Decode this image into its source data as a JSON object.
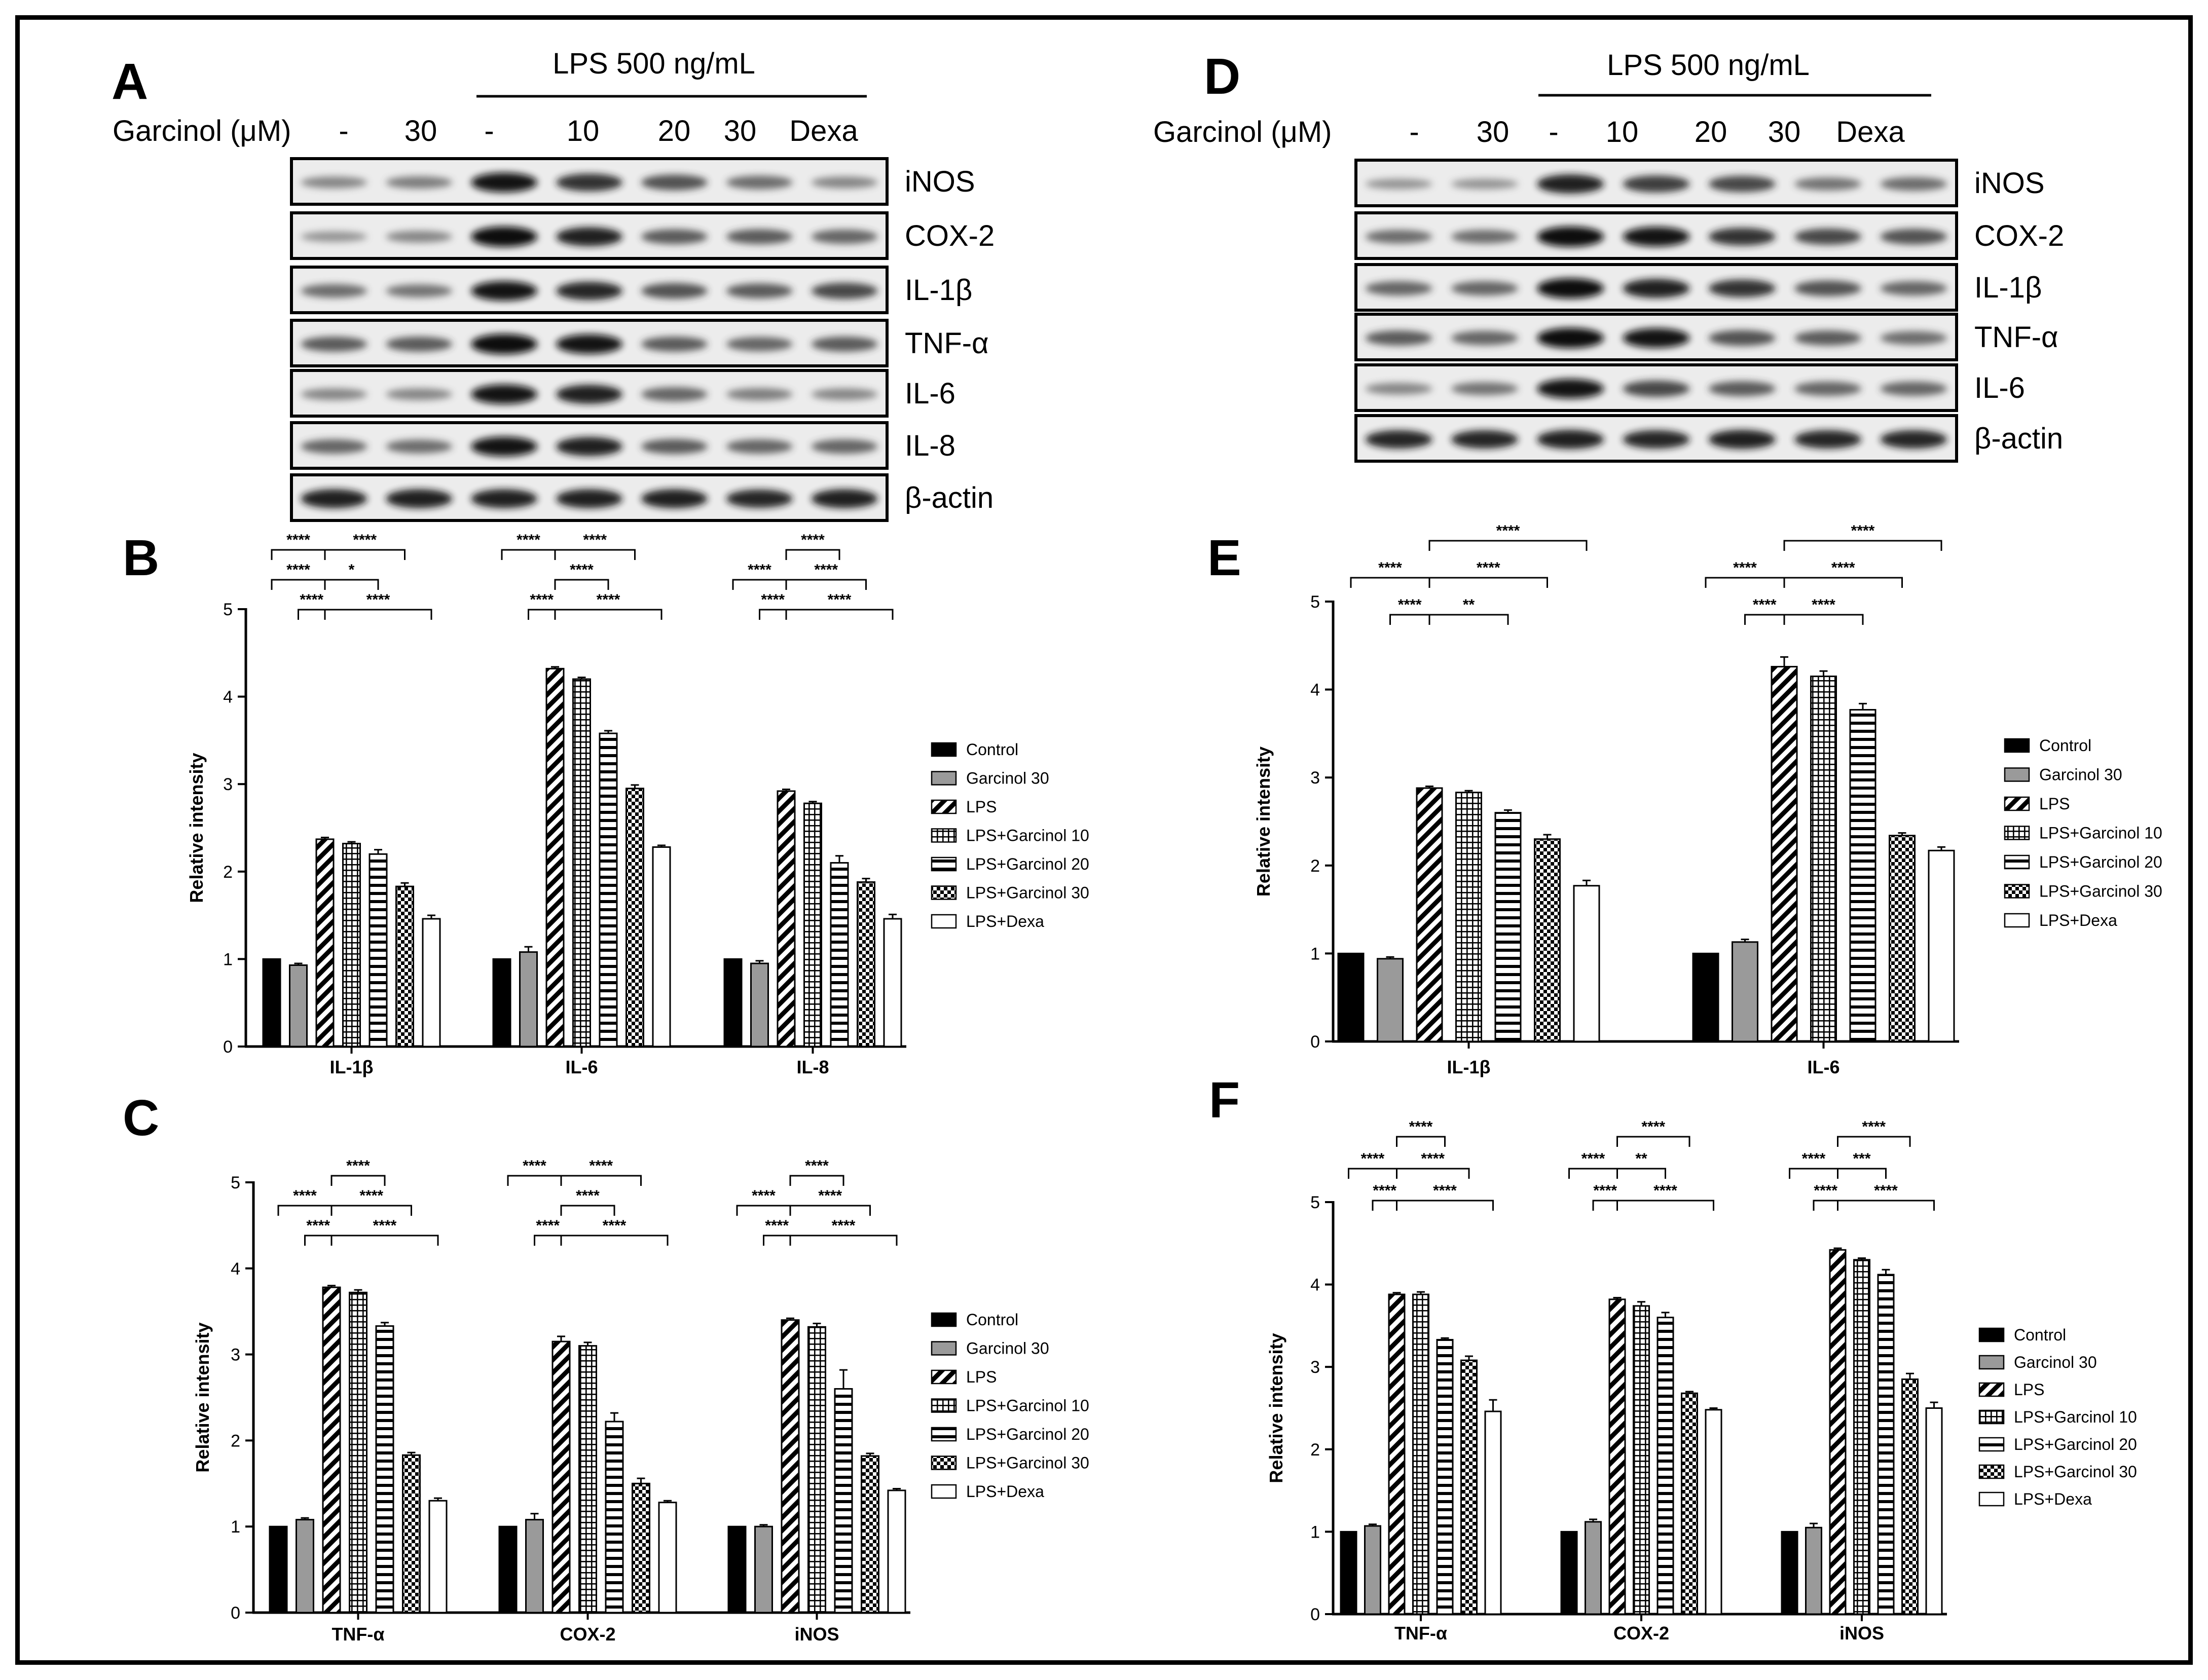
{
  "colors": {
    "ink": "#000000",
    "bar_grey": "#9a9a9a",
    "background": "#ffffff"
  },
  "legend": [
    "Control",
    "Garcinol 30",
    "LPS",
    "LPS+Garcinol 10",
    "LPS+Garcinol 20",
    "LPS+Garcinol 30",
    "LPS+Dexa"
  ],
  "blots": [
    {
      "panel": "A",
      "lps_label": "LPS 500 ng/mL",
      "garcinol_label": "Garcinol (μM)",
      "lanes": [
        "-",
        "30",
        "-",
        "10",
        "20",
        "30",
        "Dexa"
      ],
      "bands": [
        "iNOS",
        "COX-2",
        "IL-1β",
        "TNF-α",
        "IL-6",
        "IL-8",
        "β-actin"
      ]
    },
    {
      "panel": "D",
      "lps_label": "LPS 500 ng/mL",
      "garcinol_label": "Garcinol (μM)",
      "lanes": [
        "-",
        "30",
        "-",
        "10",
        "20",
        "30",
        "Dexa"
      ],
      "bands": [
        "iNOS",
        "COX-2",
        "IL-1β",
        "TNF-α",
        "IL-6",
        "β-actin"
      ]
    }
  ],
  "chart_data": [
    {
      "panel": "B",
      "type": "bar",
      "ylabel": "Relative intensity",
      "ylim": [
        0,
        5
      ],
      "yticks": [
        "0",
        "1",
        "2",
        "3",
        "4",
        "5"
      ],
      "categories": [
        "IL-1β",
        "IL-6",
        "IL-8"
      ],
      "series": [
        {
          "name": "Control",
          "values": [
            1.0,
            1.0,
            1.0
          ],
          "errors": [
            0,
            0,
            0
          ]
        },
        {
          "name": "Garcinol 30",
          "values": [
            0.93,
            1.08,
            0.95
          ],
          "errors": [
            0.02,
            0.06,
            0.03
          ]
        },
        {
          "name": "LPS",
          "values": [
            2.37,
            4.32,
            2.92
          ],
          "errors": [
            0.02,
            0.02,
            0.02
          ]
        },
        {
          "name": "LPS+Garcinol 10",
          "values": [
            2.32,
            4.2,
            2.78
          ],
          "errors": [
            0.02,
            0.02,
            0.02
          ]
        },
        {
          "name": "LPS+Garcinol 20",
          "values": [
            2.2,
            3.58,
            2.1
          ],
          "errors": [
            0.05,
            0.03,
            0.08
          ]
        },
        {
          "name": "LPS+Garcinol 30",
          "values": [
            1.83,
            2.95,
            1.88
          ],
          "errors": [
            0.04,
            0.04,
            0.04
          ]
        },
        {
          "name": "LPS+Dexa",
          "values": [
            1.46,
            2.28,
            1.46
          ],
          "errors": [
            0.04,
            0.02,
            0.05
          ]
        }
      ],
      "significance": [
        {
          "group": 0,
          "from": 0,
          "to": 2,
          "level": 0,
          "label": "****"
        },
        {
          "group": 0,
          "from": 2,
          "to": 5,
          "level": 0,
          "label": "****"
        },
        {
          "group": 0,
          "from": 0,
          "to": 2,
          "level": 1,
          "label": "****"
        },
        {
          "group": 0,
          "from": 2,
          "to": 4,
          "level": 1,
          "label": "*"
        },
        {
          "group": 0,
          "from": 1,
          "to": 2,
          "level": 2,
          "label": "****"
        },
        {
          "group": 0,
          "from": 2,
          "to": 6,
          "level": 2,
          "label": "****"
        },
        {
          "group": 1,
          "from": 0,
          "to": 2,
          "level": 0,
          "label": "****"
        },
        {
          "group": 1,
          "from": 2,
          "to": 5,
          "level": 0,
          "label": "****"
        },
        {
          "group": 1,
          "from": 2,
          "to": 4,
          "level": 1,
          "label": "****"
        },
        {
          "group": 1,
          "from": 1,
          "to": 2,
          "level": 2,
          "label": "****"
        },
        {
          "group": 1,
          "from": 2,
          "to": 6,
          "level": 2,
          "label": "****"
        },
        {
          "group": 2,
          "from": 2,
          "to": 4,
          "level": 0,
          "label": "****"
        },
        {
          "group": 2,
          "from": 0,
          "to": 2,
          "level": 1,
          "label": "****"
        },
        {
          "group": 2,
          "from": 2,
          "to": 5,
          "level": 1,
          "label": "****"
        },
        {
          "group": 2,
          "from": 1,
          "to": 2,
          "level": 2,
          "label": "****"
        },
        {
          "group": 2,
          "from": 2,
          "to": 6,
          "level": 2,
          "label": "****"
        }
      ]
    },
    {
      "panel": "C",
      "type": "bar",
      "ylabel": "Relative intensity",
      "ylim": [
        0,
        5
      ],
      "yticks": [
        "0",
        "1",
        "2",
        "3",
        "4",
        "5"
      ],
      "categories": [
        "TNF-α",
        "COX-2",
        "iNOS"
      ],
      "series": [
        {
          "name": "Control",
          "values": [
            1.0,
            1.0,
            1.0
          ],
          "errors": [
            0,
            0,
            0
          ]
        },
        {
          "name": "Garcinol 30",
          "values": [
            1.08,
            1.08,
            1.0
          ],
          "errors": [
            0.02,
            0.07,
            0.02
          ]
        },
        {
          "name": "LPS",
          "values": [
            3.78,
            3.15,
            3.4
          ],
          "errors": [
            0.02,
            0.06,
            0.02
          ]
        },
        {
          "name": "LPS+Garcinol 10",
          "values": [
            3.72,
            3.1,
            3.32
          ],
          "errors": [
            0.03,
            0.04,
            0.04
          ]
        },
        {
          "name": "LPS+Garcinol 20",
          "values": [
            3.33,
            2.22,
            2.6
          ],
          "errors": [
            0.04,
            0.1,
            0.22
          ]
        },
        {
          "name": "LPS+Garcinol 30",
          "values": [
            1.83,
            1.5,
            1.82
          ],
          "errors": [
            0.03,
            0.06,
            0.03
          ]
        },
        {
          "name": "LPS+Dexa",
          "values": [
            1.3,
            1.28,
            1.42
          ],
          "errors": [
            0.03,
            0.02,
            0.02
          ]
        }
      ],
      "significance": [
        {
          "group": 0,
          "from": 2,
          "to": 4,
          "level": 0,
          "label": "****"
        },
        {
          "group": 0,
          "from": 0,
          "to": 2,
          "level": 1,
          "label": "****"
        },
        {
          "group": 0,
          "from": 2,
          "to": 5,
          "level": 1,
          "label": "****"
        },
        {
          "group": 0,
          "from": 1,
          "to": 2,
          "level": 2,
          "label": "****"
        },
        {
          "group": 0,
          "from": 2,
          "to": 6,
          "level": 2,
          "label": "****"
        },
        {
          "group": 1,
          "from": 0,
          "to": 2,
          "level": 0,
          "label": "****"
        },
        {
          "group": 1,
          "from": 2,
          "to": 5,
          "level": 0,
          "label": "****"
        },
        {
          "group": 1,
          "from": 2,
          "to": 4,
          "level": 1,
          "label": "****"
        },
        {
          "group": 1,
          "from": 1,
          "to": 2,
          "level": 2,
          "label": "****"
        },
        {
          "group": 1,
          "from": 2,
          "to": 6,
          "level": 2,
          "label": "****"
        },
        {
          "group": 2,
          "from": 2,
          "to": 4,
          "level": 0,
          "label": "****"
        },
        {
          "group": 2,
          "from": 0,
          "to": 2,
          "level": 1,
          "label": "****"
        },
        {
          "group": 2,
          "from": 2,
          "to": 5,
          "level": 1,
          "label": "****"
        },
        {
          "group": 2,
          "from": 1,
          "to": 2,
          "level": 2,
          "label": "****"
        },
        {
          "group": 2,
          "from": 2,
          "to": 6,
          "level": 2,
          "label": "****"
        }
      ]
    },
    {
      "panel": "E",
      "type": "bar",
      "ylabel": "Relative intensity",
      "ylim": [
        0,
        5
      ],
      "yticks": [
        "0",
        "1",
        "2",
        "3",
        "4",
        "5"
      ],
      "categories": [
        "IL-1β",
        "IL-6"
      ],
      "series": [
        {
          "name": "Control",
          "values": [
            1.0,
            1.0
          ],
          "errors": [
            0,
            0
          ]
        },
        {
          "name": "Garcinol 30",
          "values": [
            0.94,
            1.13
          ],
          "errors": [
            0.02,
            0.03
          ]
        },
        {
          "name": "LPS",
          "values": [
            2.88,
            4.26
          ],
          "errors": [
            0.02,
            0.11
          ]
        },
        {
          "name": "LPS+Garcinol 10",
          "values": [
            2.83,
            4.15
          ],
          "errors": [
            0.02,
            0.06
          ]
        },
        {
          "name": "LPS+Garcinol 20",
          "values": [
            2.6,
            3.77
          ],
          "errors": [
            0.03,
            0.07
          ]
        },
        {
          "name": "LPS+Garcinol 30",
          "values": [
            2.3,
            2.34
          ],
          "errors": [
            0.05,
            0.03
          ]
        },
        {
          "name": "LPS+Dexa",
          "values": [
            1.77,
            2.17
          ],
          "errors": [
            0.06,
            0.04
          ]
        }
      ],
      "significance": [
        {
          "group": 0,
          "from": 2,
          "to": 6,
          "level": 0,
          "label": "****"
        },
        {
          "group": 0,
          "from": 0,
          "to": 2,
          "level": 1,
          "label": "****"
        },
        {
          "group": 0,
          "from": 2,
          "to": 5,
          "level": 1,
          "label": "****"
        },
        {
          "group": 0,
          "from": 1,
          "to": 2,
          "level": 2,
          "label": "****"
        },
        {
          "group": 0,
          "from": 2,
          "to": 4,
          "level": 2,
          "label": "**"
        },
        {
          "group": 1,
          "from": 2,
          "to": 6,
          "level": 0,
          "label": "****"
        },
        {
          "group": 1,
          "from": 0,
          "to": 2,
          "level": 1,
          "label": "****"
        },
        {
          "group": 1,
          "from": 2,
          "to": 5,
          "level": 1,
          "label": "****"
        },
        {
          "group": 1,
          "from": 1,
          "to": 2,
          "level": 2,
          "label": "****"
        },
        {
          "group": 1,
          "from": 2,
          "to": 4,
          "level": 2,
          "label": "****"
        }
      ]
    },
    {
      "panel": "F",
      "type": "bar",
      "ylabel": "Relative intensity",
      "ylim": [
        0,
        5
      ],
      "yticks": [
        "0",
        "1",
        "2",
        "3",
        "4",
        "5"
      ],
      "categories": [
        "TNF-α",
        "COX-2",
        "iNOS"
      ],
      "series": [
        {
          "name": "Control",
          "values": [
            1.0,
            1.0,
            1.0
          ],
          "errors": [
            0,
            0,
            0
          ]
        },
        {
          "name": "Garcinol 30",
          "values": [
            1.07,
            1.12,
            1.05
          ],
          "errors": [
            0.02,
            0.03,
            0.05
          ]
        },
        {
          "name": "LPS",
          "values": [
            3.88,
            3.82,
            4.42
          ],
          "errors": [
            0.02,
            0.02,
            0.02
          ]
        },
        {
          "name": "LPS+Garcinol 10",
          "values": [
            3.88,
            3.74,
            4.3
          ],
          "errors": [
            0.03,
            0.05,
            0.02
          ]
        },
        {
          "name": "LPS+Garcinol 20",
          "values": [
            3.33,
            3.6,
            4.12
          ],
          "errors": [
            0.02,
            0.06,
            0.06
          ]
        },
        {
          "name": "LPS+Garcinol 30",
          "values": [
            3.08,
            2.68,
            2.85
          ],
          "errors": [
            0.05,
            0.02,
            0.07
          ]
        },
        {
          "name": "LPS+Dexa",
          "values": [
            2.46,
            2.48,
            2.5
          ],
          "errors": [
            0.14,
            0.02,
            0.07
          ]
        }
      ],
      "significance": [
        {
          "group": 0,
          "from": 2,
          "to": 4,
          "level": 0,
          "label": "****"
        },
        {
          "group": 0,
          "from": 0,
          "to": 2,
          "level": 1,
          "label": "****"
        },
        {
          "group": 0,
          "from": 2,
          "to": 5,
          "level": 1,
          "label": "****"
        },
        {
          "group": 0,
          "from": 1,
          "to": 2,
          "level": 2,
          "label": "****"
        },
        {
          "group": 0,
          "from": 2,
          "to": 6,
          "level": 2,
          "label": "****"
        },
        {
          "group": 1,
          "from": 2,
          "to": 5,
          "level": 0,
          "label": "****"
        },
        {
          "group": 1,
          "from": 0,
          "to": 2,
          "level": 1,
          "label": "****"
        },
        {
          "group": 1,
          "from": 2,
          "to": 4,
          "level": 1,
          "label": "**"
        },
        {
          "group": 1,
          "from": 1,
          "to": 2,
          "level": 2,
          "label": "****"
        },
        {
          "group": 1,
          "from": 2,
          "to": 6,
          "level": 2,
          "label": "****"
        },
        {
          "group": 2,
          "from": 2,
          "to": 5,
          "level": 0,
          "label": "****"
        },
        {
          "group": 2,
          "from": 0,
          "to": 2,
          "level": 1,
          "label": "****"
        },
        {
          "group": 2,
          "from": 2,
          "to": 4,
          "level": 1,
          "label": "***"
        },
        {
          "group": 2,
          "from": 1,
          "to": 2,
          "level": 2,
          "label": "****"
        },
        {
          "group": 2,
          "from": 2,
          "to": 6,
          "level": 2,
          "label": "****"
        }
      ]
    }
  ]
}
